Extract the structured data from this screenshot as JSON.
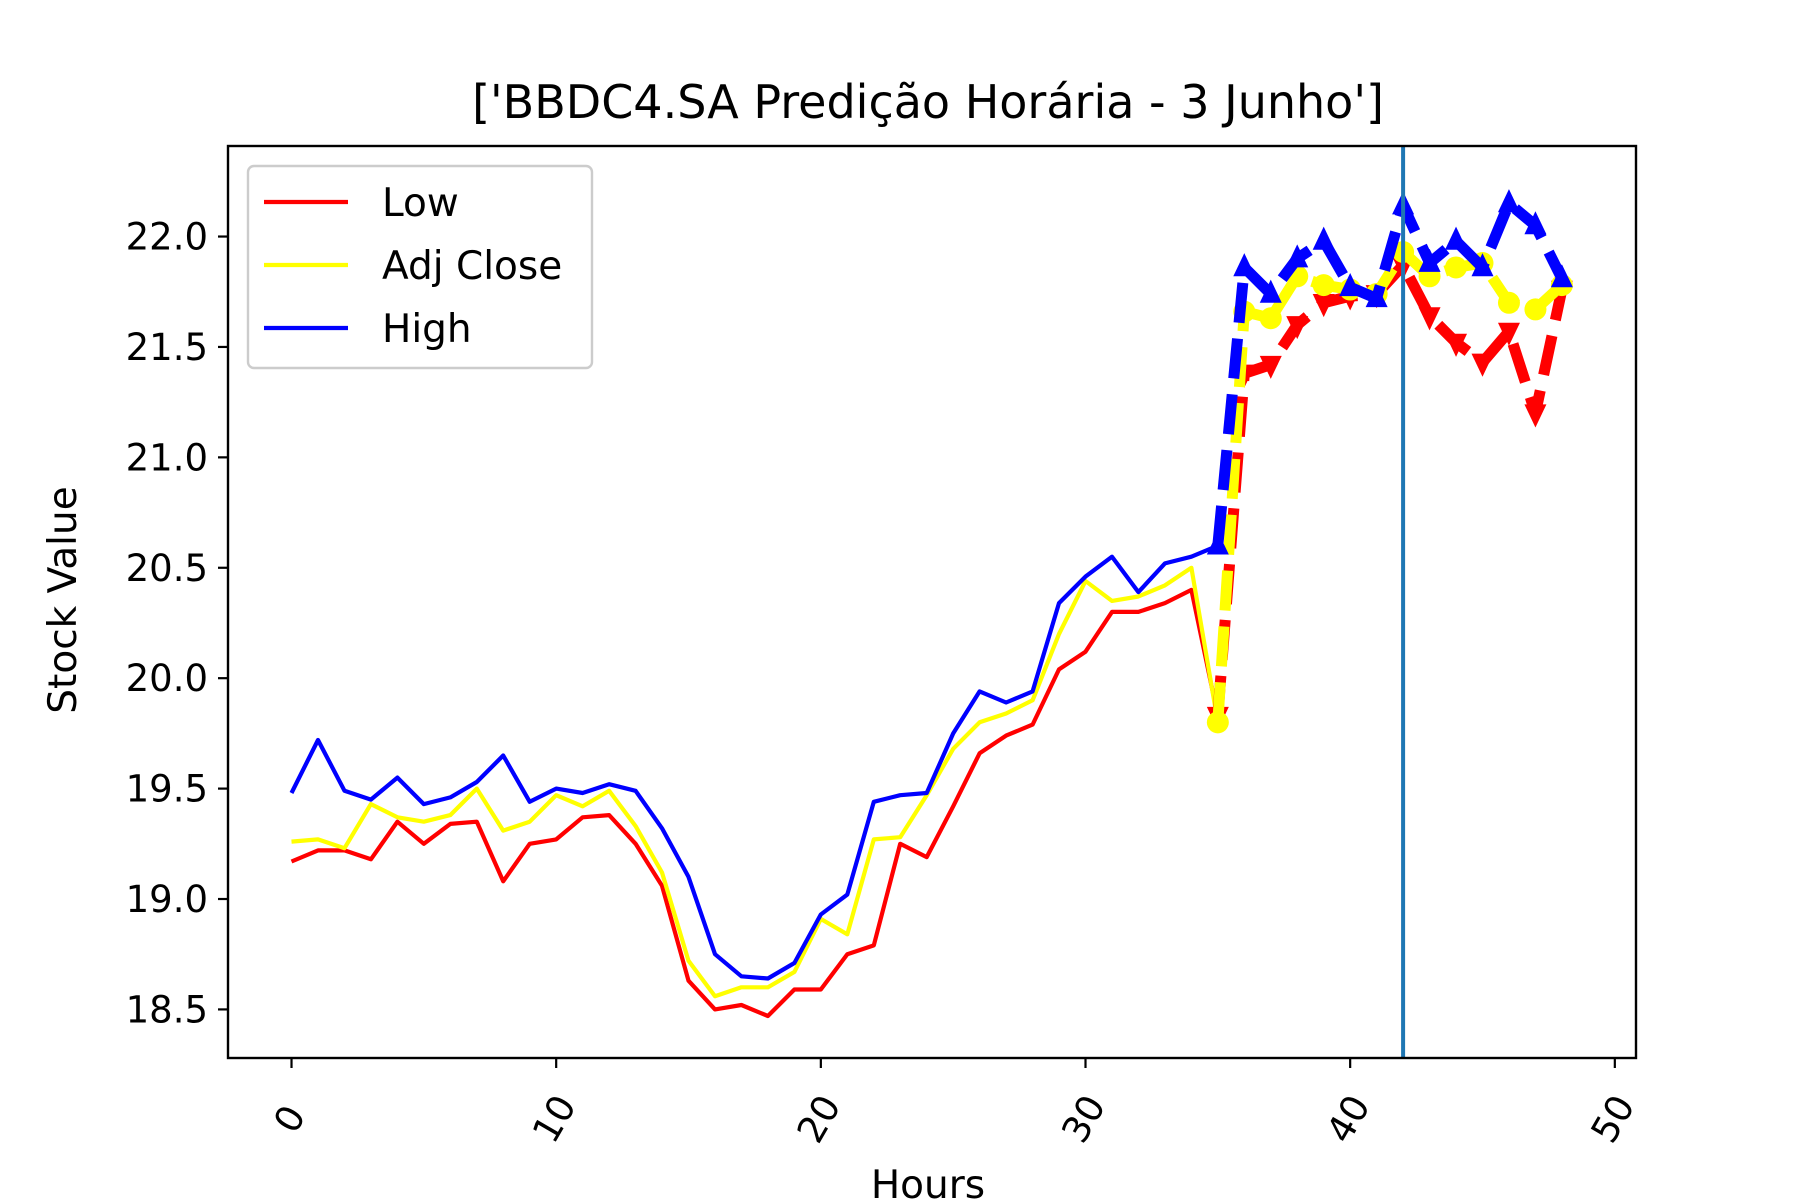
{
  "chart_data": {
    "type": "line",
    "title": "['BBDC4.SA Predição Horária - 3 Junho']",
    "xlabel": "Hours",
    "ylabel": "Stock Value",
    "xlim": [
      -2.4,
      50.8
    ],
    "ylim": [
      18.28,
      22.41
    ],
    "x_ticks": [
      "0",
      "10",
      "20",
      "30",
      "40",
      "50"
    ],
    "y_ticks": [
      "18.5",
      "19.0",
      "19.5",
      "20.0",
      "20.5",
      "21.0",
      "21.5",
      "22.0"
    ],
    "x_tick_rotation": -60,
    "grid": false,
    "legend": {
      "placement": "upper-left"
    },
    "vertical_line": {
      "x": 42,
      "color": "#1f77b4"
    },
    "series": [
      {
        "name": "Low",
        "color": "#ff0000",
        "x": [
          0,
          1,
          2,
          3,
          4,
          5,
          6,
          7,
          8,
          9,
          10,
          11,
          12,
          13,
          14,
          15,
          16,
          17,
          18,
          19,
          20,
          21,
          22,
          23,
          24,
          25,
          26,
          27,
          28,
          29,
          30,
          31,
          32,
          33,
          34,
          35
        ],
        "values": [
          19.17,
          19.22,
          19.22,
          19.18,
          19.35,
          19.25,
          19.34,
          19.35,
          19.08,
          19.25,
          19.27,
          19.37,
          19.38,
          19.25,
          19.06,
          18.63,
          18.5,
          18.52,
          18.47,
          18.59,
          18.59,
          18.75,
          18.79,
          19.25,
          19.19,
          19.42,
          19.66,
          19.74,
          19.79,
          20.04,
          20.12,
          20.3,
          20.3,
          20.34,
          20.4,
          19.83
        ]
      },
      {
        "name": "Adj Close",
        "color": "#ffff00",
        "x": [
          0,
          1,
          2,
          3,
          4,
          5,
          6,
          7,
          8,
          9,
          10,
          11,
          12,
          13,
          14,
          15,
          16,
          17,
          18,
          19,
          20,
          21,
          22,
          23,
          24,
          25,
          26,
          27,
          28,
          29,
          30,
          31,
          32,
          33,
          34,
          35
        ],
        "values": [
          19.26,
          19.27,
          19.23,
          19.43,
          19.37,
          19.35,
          19.38,
          19.5,
          19.31,
          19.35,
          19.47,
          19.42,
          19.49,
          19.33,
          19.12,
          18.72,
          18.56,
          18.6,
          18.6,
          18.67,
          18.91,
          18.84,
          19.27,
          19.28,
          19.47,
          19.68,
          19.8,
          19.84,
          19.9,
          20.2,
          20.44,
          20.35,
          20.37,
          20.42,
          20.5,
          19.8
        ]
      },
      {
        "name": "High",
        "color": "#0000ff",
        "x": [
          0,
          1,
          2,
          3,
          4,
          5,
          6,
          7,
          8,
          9,
          10,
          11,
          12,
          13,
          14,
          15,
          16,
          17,
          18,
          19,
          20,
          21,
          22,
          23,
          24,
          25,
          26,
          27,
          28,
          29,
          30,
          31,
          32,
          33,
          34,
          35
        ],
        "values": [
          19.48,
          19.72,
          19.49,
          19.45,
          19.55,
          19.43,
          19.46,
          19.53,
          19.65,
          19.44,
          19.5,
          19.48,
          19.52,
          19.49,
          19.32,
          19.1,
          18.75,
          18.65,
          18.64,
          18.71,
          18.93,
          19.02,
          19.44,
          19.47,
          19.48,
          19.75,
          19.94,
          19.89,
          19.94,
          20.34,
          20.46,
          20.55,
          20.39,
          20.52,
          20.55,
          20.6
        ]
      }
    ],
    "prediction_series": [
      {
        "follows": "Low",
        "color": "#ff0000",
        "marker": "triangle-down",
        "x": [
          35,
          36,
          37,
          38,
          39,
          40,
          41,
          42,
          43,
          44,
          45,
          46,
          47,
          48
        ],
        "values": [
          19.83,
          21.38,
          21.42,
          21.6,
          21.7,
          21.73,
          21.74,
          21.87,
          21.64,
          21.52,
          21.43,
          21.57,
          21.2,
          21.76
        ]
      },
      {
        "follows": "Adj Close",
        "color": "#ffff00",
        "marker": "circle",
        "x": [
          35,
          36,
          37,
          38,
          39,
          40,
          41,
          42,
          43,
          44,
          45,
          46,
          47,
          48
        ],
        "values": [
          19.8,
          21.66,
          21.63,
          21.82,
          21.78,
          21.76,
          21.74,
          21.93,
          21.82,
          21.86,
          21.88,
          21.7,
          21.67,
          21.78
        ]
      },
      {
        "follows": "High",
        "color": "#0000ff",
        "marker": "triangle-up",
        "x": [
          35,
          36,
          37,
          38,
          39,
          40,
          41,
          42,
          43,
          44,
          45,
          46,
          47,
          48
        ],
        "values": [
          20.6,
          21.86,
          21.74,
          21.9,
          21.98,
          21.77,
          21.72,
          22.14,
          21.88,
          21.98,
          21.86,
          22.15,
          22.05,
          21.81
        ]
      }
    ]
  }
}
